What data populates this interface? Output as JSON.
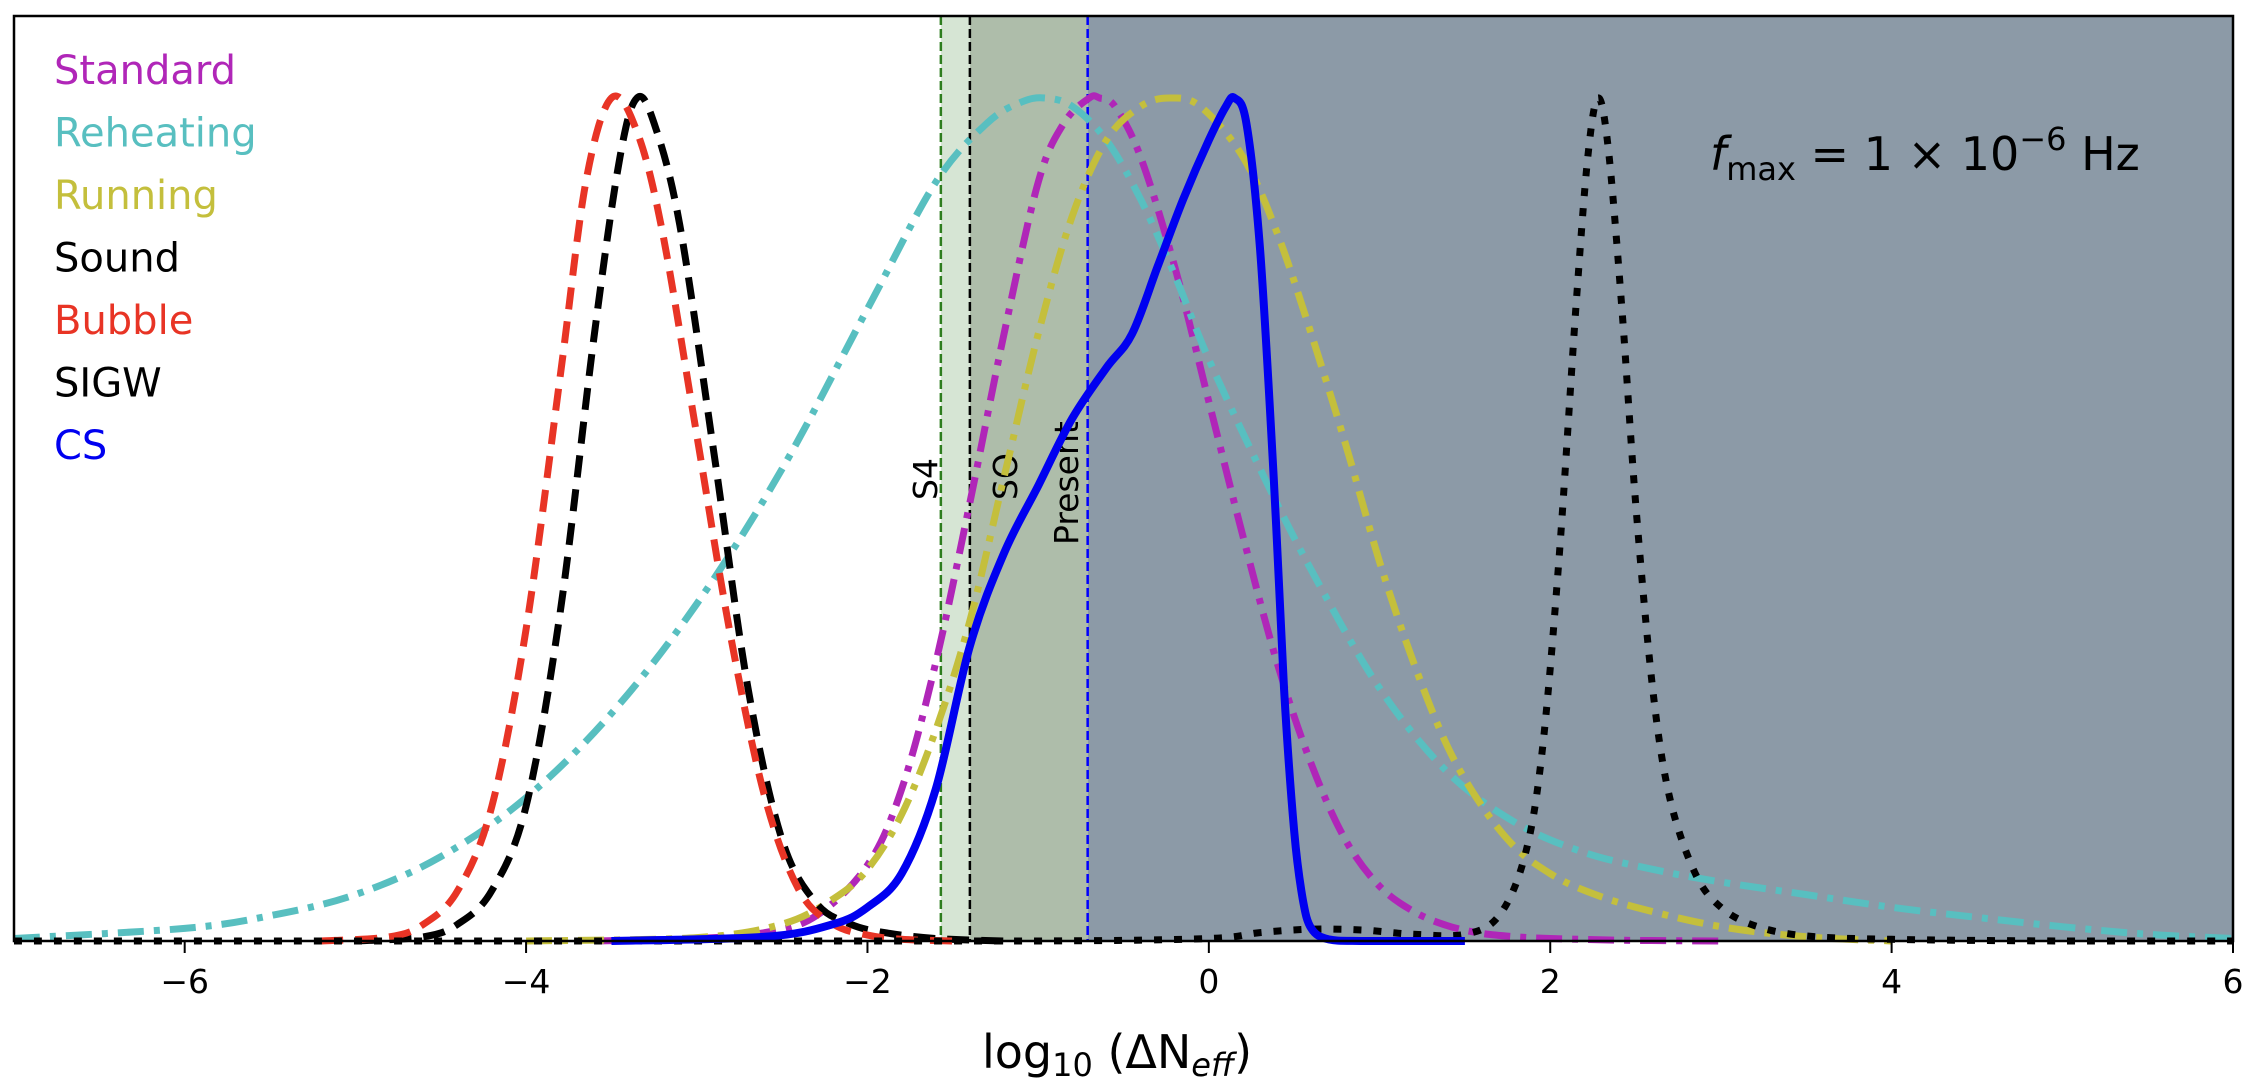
{
  "chart_data": {
    "type": "line",
    "title": "",
    "xlabel": "log10 (ΔN_eff)",
    "ylabel": "",
    "xlim": [
      -7,
      6
    ],
    "ylim": [
      0,
      1.02
    ],
    "x_ticks": [
      -6,
      -4,
      -2,
      0,
      2,
      4,
      6
    ],
    "x_tick_labels": [
      "−6",
      "−4",
      "−2",
      "0",
      "2",
      "4",
      "6"
    ],
    "y_ticks": [],
    "grid": false,
    "legend_position": "upper left",
    "annotation": "f_max = 1 × 10^−6 Hz",
    "shaded_regions": [
      {
        "name": "S4",
        "from": -1.57,
        "to": -1.4,
        "color": "#d6e5d4"
      },
      {
        "name": "SO",
        "from": -1.4,
        "to": -0.71,
        "color": "#aebdaa"
      },
      {
        "name": "Present",
        "from": -0.71,
        "to": 6,
        "color": "#8c9aa7"
      }
    ],
    "vertical_lines": [
      {
        "label": "S4",
        "x": -1.57,
        "color": "#2e7d1f",
        "style": "dashed"
      },
      {
        "label": "SO",
        "x": -1.4,
        "color": "#000000",
        "style": "dashed"
      },
      {
        "label": "Present",
        "x": -0.71,
        "color": "#0000ff",
        "style": "dashed"
      }
    ],
    "series": [
      {
        "name": "Standard",
        "color": "#b026b8",
        "style": "dashdot",
        "peak_x": -0.64,
        "x": [
          -3.6,
          -3.0,
          -2.6,
          -2.3,
          -2.0,
          -1.8,
          -1.6,
          -1.4,
          -1.2,
          -1.0,
          -0.85,
          -0.7,
          -0.64,
          -0.55,
          -0.4,
          -0.2,
          0.0,
          0.2,
          0.4,
          0.6,
          0.8,
          1.0,
          1.2,
          1.4,
          1.6,
          1.8,
          2.0,
          2.4,
          3.0
        ],
        "y": [
          0.0,
          0.003,
          0.01,
          0.03,
          0.09,
          0.18,
          0.33,
          0.52,
          0.72,
          0.9,
          0.97,
          1.0,
          1.0,
          0.99,
          0.93,
          0.8,
          0.64,
          0.48,
          0.33,
          0.21,
          0.12,
          0.065,
          0.035,
          0.018,
          0.009,
          0.005,
          0.003,
          0.001,
          0.0
        ]
      },
      {
        "name": "Reheating",
        "color": "#58bfc0",
        "style": "dashdot",
        "peak_x": -0.96,
        "x": [
          -7.0,
          -6.0,
          -5.5,
          -5.0,
          -4.5,
          -4.0,
          -3.5,
          -3.0,
          -2.5,
          -2.0,
          -1.6,
          -1.3,
          -1.1,
          -0.96,
          -0.8,
          -0.6,
          -0.4,
          -0.2,
          0.0,
          0.3,
          0.6,
          1.0,
          1.4,
          1.8,
          2.2,
          2.6,
          3.0,
          3.5,
          4.0,
          4.5,
          5.0,
          5.5,
          6.0
        ],
        "y": [
          0.003,
          0.015,
          0.03,
          0.055,
          0.1,
          0.17,
          0.27,
          0.4,
          0.56,
          0.75,
          0.9,
          0.97,
          0.995,
          1.0,
          0.99,
          0.95,
          0.88,
          0.79,
          0.69,
          0.56,
          0.44,
          0.3,
          0.2,
          0.14,
          0.105,
          0.085,
          0.07,
          0.055,
          0.04,
          0.028,
          0.017,
          0.008,
          0.003
        ]
      },
      {
        "name": "Running",
        "color": "#c4bf3c",
        "style": "dashdot",
        "peak_x": -0.23,
        "x": [
          -4.0,
          -3.0,
          -2.5,
          -2.2,
          -2.0,
          -1.8,
          -1.6,
          -1.4,
          -1.2,
          -1.0,
          -0.8,
          -0.6,
          -0.4,
          -0.23,
          -0.05,
          0.2,
          0.4,
          0.6,
          0.8,
          1.0,
          1.2,
          1.4,
          1.6,
          1.8,
          2.0,
          2.2,
          2.5,
          3.0,
          3.5,
          4.0
        ],
        "y": [
          0.0,
          0.004,
          0.02,
          0.05,
          0.085,
          0.15,
          0.25,
          0.38,
          0.55,
          0.72,
          0.86,
          0.95,
          0.99,
          1.0,
          0.99,
          0.93,
          0.84,
          0.72,
          0.59,
          0.45,
          0.33,
          0.23,
          0.16,
          0.11,
          0.08,
          0.06,
          0.04,
          0.017,
          0.005,
          0.0
        ]
      },
      {
        "name": "Sound",
        "color": "#000000",
        "style": "dashed",
        "peak_x": -3.35,
        "x": [
          -5.0,
          -4.6,
          -4.4,
          -4.2,
          -4.0,
          -3.8,
          -3.6,
          -3.45,
          -3.35,
          -3.25,
          -3.1,
          -2.9,
          -2.7,
          -2.5,
          -2.3,
          -2.1,
          -1.9,
          -1.6,
          -1.2
        ],
        "y": [
          0.0,
          0.005,
          0.02,
          0.06,
          0.16,
          0.39,
          0.72,
          0.93,
          1.0,
          0.97,
          0.85,
          0.58,
          0.3,
          0.12,
          0.045,
          0.02,
          0.01,
          0.003,
          0.0
        ]
      },
      {
        "name": "Bubble",
        "color": "#e83425",
        "style": "dashed",
        "peak_x": -3.5,
        "x": [
          -5.2,
          -4.8,
          -4.6,
          -4.4,
          -4.2,
          -4.0,
          -3.8,
          -3.65,
          -3.5,
          -3.35,
          -3.2,
          -3.0,
          -2.8,
          -2.6,
          -2.4,
          -2.2,
          -2.0,
          -1.8,
          -1.5
        ],
        "y": [
          0.0,
          0.005,
          0.02,
          0.06,
          0.16,
          0.37,
          0.67,
          0.9,
          1.0,
          0.96,
          0.84,
          0.6,
          0.36,
          0.17,
          0.06,
          0.02,
          0.007,
          0.002,
          0.0
        ]
      },
      {
        "name": "SIGW",
        "color": "#000000",
        "style": "dotted",
        "peak_x": 2.28,
        "x": [
          -7.0,
          -3.0,
          -1.0,
          0.0,
          0.3,
          0.6,
          0.9,
          1.2,
          1.5,
          1.7,
          1.85,
          1.95,
          2.05,
          2.15,
          2.22,
          2.28,
          2.34,
          2.42,
          2.5,
          2.6,
          2.7,
          2.85,
          3.0,
          3.2,
          3.5,
          4.0,
          5.0,
          6.0
        ],
        "y": [
          0.0,
          0.0,
          0.0,
          0.003,
          0.01,
          0.014,
          0.013,
          0.008,
          0.008,
          0.03,
          0.1,
          0.22,
          0.45,
          0.75,
          0.93,
          1.0,
          0.94,
          0.75,
          0.52,
          0.3,
          0.17,
          0.08,
          0.04,
          0.018,
          0.006,
          0.002,
          0.0,
          0.0
        ]
      },
      {
        "name": "CS",
        "color": "#0000f0",
        "style": "solid",
        "peak_x": 0.15,
        "x": [
          -3.5,
          -2.6,
          -2.2,
          -2.0,
          -1.8,
          -1.6,
          -1.4,
          -1.2,
          -1.0,
          -0.8,
          -0.6,
          -0.45,
          -0.3,
          -0.15,
          0.0,
          0.1,
          0.15,
          0.22,
          0.3,
          0.38,
          0.44,
          0.5,
          0.55,
          0.6,
          0.7,
          0.9,
          1.5
        ],
        "y": [
          0.0,
          0.005,
          0.02,
          0.04,
          0.08,
          0.18,
          0.35,
          0.46,
          0.54,
          0.62,
          0.68,
          0.72,
          0.8,
          0.88,
          0.95,
          0.99,
          1.0,
          0.97,
          0.82,
          0.55,
          0.3,
          0.13,
          0.05,
          0.015,
          0.002,
          0.0,
          0.0
        ]
      }
    ]
  },
  "legend": {
    "items": [
      {
        "label": "Standard",
        "color": "#b026b8"
      },
      {
        "label": "Reheating",
        "color": "#58bfc0"
      },
      {
        "label": "Running",
        "color": "#c4bf3c"
      },
      {
        "label": "Sound",
        "color": "#000000"
      },
      {
        "label": "Bubble",
        "color": "#e83425"
      },
      {
        "label": "SIGW",
        "color": "#000000"
      },
      {
        "label": "CS",
        "color": "#0000f0"
      }
    ]
  },
  "labels": {
    "s4": "S4",
    "so": "SO",
    "present": "Present",
    "annotation_f": "f",
    "annotation_sub": "max",
    "annotation_rest": " = 1 × 10",
    "annotation_exp": "−6",
    "annotation_unit": " Hz",
    "xlabel_log": "log",
    "xlabel_sub10": "10",
    "xlabel_paren_open": " (ΔN",
    "xlabel_sub_eff": "eff",
    "xlabel_paren_close": ")"
  }
}
